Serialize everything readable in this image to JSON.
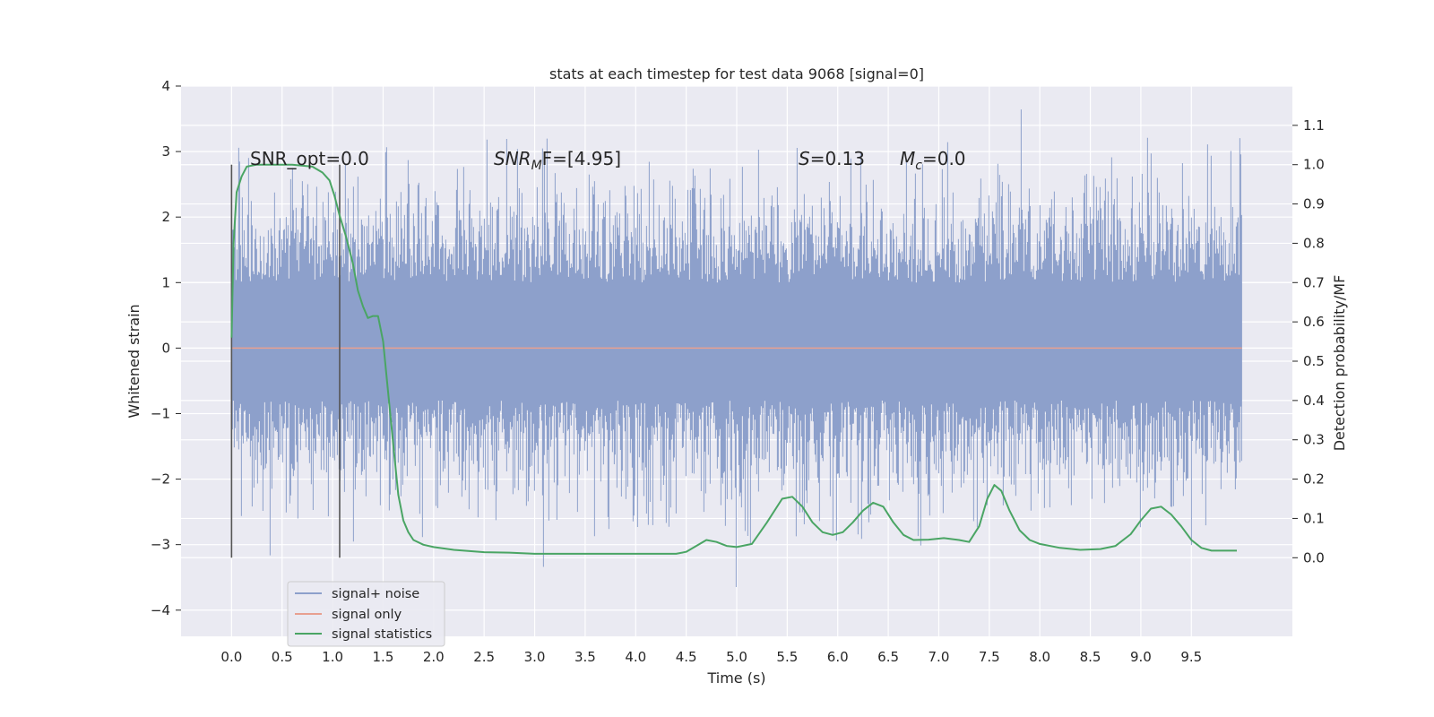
{
  "chart_data": {
    "type": "line",
    "title": "stats at each timestep for test data 9068 [signal=0]",
    "xlabel": "Time (s)",
    "ylabel": "Whitened strain",
    "y2label": "Detection probability/MF",
    "xlim": [
      -0.5,
      10.5
    ],
    "ylim": [
      -4.4,
      4.0
    ],
    "y2lim": [
      -0.2,
      1.2
    ],
    "grid": true,
    "legend_position": "lower-left",
    "x_ticks": [
      "0.0",
      "0.5",
      "1.0",
      "1.5",
      "2.0",
      "2.5",
      "3.0",
      "3.5",
      "4.0",
      "4.5",
      "5.0",
      "5.5",
      "6.0",
      "6.5",
      "7.0",
      "7.5",
      "8.0",
      "8.5",
      "9.0",
      "9.5"
    ],
    "y_ticks": [
      "4",
      "3",
      "2",
      "1",
      "0",
      "−1",
      "−2",
      "−3",
      "−4"
    ],
    "y2_ticks": [
      "1.1",
      "1.0",
      "0.9",
      "0.8",
      "0.7",
      "0.6",
      "0.5",
      "0.4",
      "0.3",
      "0.2",
      "0.1",
      "0.0"
    ],
    "annotations": {
      "snr_opt": "SNR_opt=0.0",
      "snr_mf_label": "SNR",
      "snr_mf_sub": "M",
      "snr_mf_rest": "F=[4.95]",
      "s_label": "S",
      "s_value": "=0.13",
      "mc_label": "M",
      "mc_sub": "c",
      "mc_value": "=0.0"
    },
    "vlines_x": [
      0.0,
      1.07
    ],
    "series": [
      {
        "name": "signal+ noise",
        "color": "#8da0cb",
        "x_range": [
          0.0,
          10.0
        ],
        "core_band": [
          -0.8,
          1.0
        ],
        "extremes": [
          -4.05,
          3.65
        ],
        "noise_std": 0.65
      },
      {
        "name": "signal only",
        "color": "#e8a090",
        "x": [
          0.0,
          10.0
        ],
        "y": [
          0.0,
          0.0
        ]
      },
      {
        "name": "signal statistics",
        "color": "#4aa564",
        "axis": "right",
        "x": [
          0.0,
          0.02,
          0.05,
          0.1,
          0.15,
          0.25,
          0.4,
          0.6,
          0.8,
          0.9,
          0.97,
          1.02,
          1.07,
          1.13,
          1.2,
          1.25,
          1.3,
          1.35,
          1.4,
          1.45,
          1.5,
          1.55,
          1.6,
          1.65,
          1.7,
          1.75,
          1.8,
          1.9,
          2.0,
          2.2,
          2.5,
          2.75,
          3.0,
          3.5,
          4.0,
          4.4,
          4.5,
          4.6,
          4.7,
          4.8,
          4.9,
          5.0,
          5.15,
          5.3,
          5.45,
          5.55,
          5.65,
          5.75,
          5.85,
          5.95,
          6.05,
          6.15,
          6.25,
          6.35,
          6.45,
          6.55,
          6.65,
          6.75,
          6.9,
          7.05,
          7.2,
          7.3,
          7.4,
          7.48,
          7.55,
          7.62,
          7.7,
          7.8,
          7.9,
          8.0,
          8.2,
          8.4,
          8.6,
          8.75,
          8.9,
          9.0,
          9.1,
          9.2,
          9.3,
          9.4,
          9.5,
          9.6,
          9.7,
          9.8,
          9.95
        ],
        "y": [
          0.56,
          0.8,
          0.93,
          0.97,
          0.995,
          1.0,
          1.0,
          1.0,
          0.995,
          0.98,
          0.96,
          0.92,
          0.87,
          0.82,
          0.75,
          0.68,
          0.64,
          0.61,
          0.615,
          0.615,
          0.55,
          0.42,
          0.29,
          0.16,
          0.095,
          0.065,
          0.045,
          0.033,
          0.027,
          0.02,
          0.014,
          0.013,
          0.01,
          0.01,
          0.01,
          0.01,
          0.015,
          0.03,
          0.045,
          0.04,
          0.03,
          0.027,
          0.035,
          0.09,
          0.15,
          0.155,
          0.13,
          0.09,
          0.065,
          0.058,
          0.065,
          0.09,
          0.12,
          0.14,
          0.13,
          0.09,
          0.058,
          0.045,
          0.046,
          0.05,
          0.045,
          0.04,
          0.08,
          0.15,
          0.185,
          0.17,
          0.12,
          0.07,
          0.045,
          0.035,
          0.025,
          0.02,
          0.022,
          0.03,
          0.06,
          0.095,
          0.125,
          0.13,
          0.11,
          0.08,
          0.045,
          0.025,
          0.018,
          0.018,
          0.018
        ]
      }
    ]
  }
}
